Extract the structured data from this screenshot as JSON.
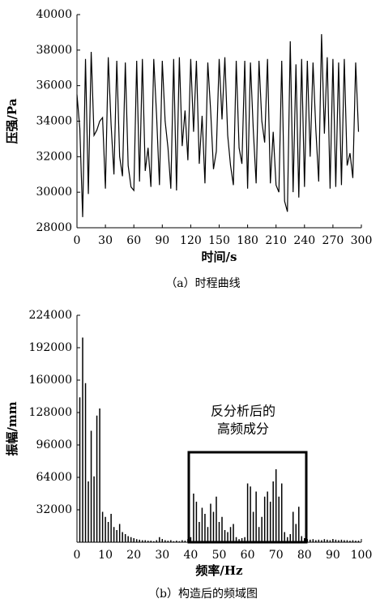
{
  "chart_data": [
    {
      "type": "line",
      "ylabel": "压强/Pa",
      "xlabel": "时间/s",
      "caption": "（a）时程曲线",
      "xlim": [
        0,
        300
      ],
      "xticks": [
        0,
        30,
        60,
        90,
        120,
        150,
        180,
        210,
        240,
        270,
        300
      ],
      "ylim": [
        28000,
        40000
      ],
      "yticks": [
        28000,
        30000,
        32000,
        34000,
        36000,
        38000,
        40000
      ],
      "color": "#000000",
      "x": [
        0,
        3,
        6,
        9,
        12,
        15,
        18,
        21,
        24,
        27,
        30,
        33,
        36,
        39,
        42,
        45,
        48,
        51,
        54,
        57,
        60,
        63,
        66,
        69,
        72,
        75,
        78,
        81,
        84,
        87,
        90,
        93,
        96,
        99,
        102,
        105,
        108,
        111,
        114,
        117,
        120,
        123,
        126,
        129,
        132,
        135,
        138,
        141,
        144,
        147,
        150,
        153,
        156,
        159,
        162,
        165,
        168,
        171,
        174,
        177,
        180,
        183,
        186,
        189,
        192,
        195,
        198,
        201,
        204,
        207,
        210,
        213,
        216,
        219,
        222,
        225,
        228,
        231,
        234,
        237,
        240,
        243,
        246,
        249,
        252,
        255,
        258,
        261,
        264,
        267,
        270,
        273,
        276,
        279,
        282,
        285,
        288,
        291,
        294,
        297
      ],
      "values": [
        35500,
        33600,
        28600,
        37500,
        29900,
        37900,
        33200,
        33500,
        34000,
        34200,
        30200,
        37600,
        33800,
        31000,
        37400,
        32000,
        30900,
        37300,
        31500,
        30300,
        30100,
        37400,
        30600,
        37500,
        31200,
        32500,
        30300,
        37500,
        34300,
        30400,
        37400,
        34000,
        32500,
        30200,
        37500,
        30100,
        37600,
        32600,
        34600,
        31800,
        37500,
        33400,
        37400,
        31600,
        34300,
        30500,
        37300,
        34600,
        31300,
        32300,
        37500,
        34100,
        37600,
        33200,
        31500,
        30400,
        37400,
        32500,
        31600,
        37400,
        30200,
        37300,
        33500,
        30500,
        37400,
        34000,
        32800,
        37500,
        30500,
        33400,
        30400,
        30000,
        37400,
        29500,
        28900,
        38500,
        30000,
        37200,
        29700,
        37500,
        30300,
        37400,
        32000,
        37300,
        33500,
        30600,
        38900,
        33300,
        37600,
        30200,
        37500,
        30300,
        37300,
        30400,
        37500,
        31500,
        32200,
        30800,
        37300,
        33400
      ]
    },
    {
      "type": "bar",
      "ylabel": "振幅/mm",
      "xlabel": "频率/Hz",
      "caption": "（b）构造后的频域图",
      "annotation": [
        "反分析后的",
        "高频成分"
      ],
      "xlim": [
        0,
        100
      ],
      "xticks": [
        0,
        10,
        20,
        30,
        40,
        50,
        60,
        70,
        80,
        90,
        100
      ],
      "ylim": [
        0,
        224000
      ],
      "yticks": [
        32000,
        64000,
        96000,
        128000,
        160000,
        192000,
        224000
      ],
      "color": "#000000",
      "x": [
        1,
        2,
        3,
        4,
        5,
        6,
        7,
        8,
        9,
        10,
        11,
        12,
        13,
        14,
        15,
        16,
        17,
        18,
        19,
        20,
        21,
        22,
        23,
        24,
        25,
        26,
        27,
        28,
        29,
        30,
        31,
        32,
        33,
        34,
        35,
        36,
        37,
        38,
        39,
        40,
        41,
        42,
        43,
        44,
        45,
        46,
        47,
        48,
        49,
        50,
        51,
        52,
        53,
        54,
        55,
        56,
        57,
        58,
        59,
        60,
        61,
        62,
        63,
        64,
        65,
        66,
        67,
        68,
        69,
        70,
        71,
        72,
        73,
        74,
        75,
        76,
        77,
        78,
        79,
        80,
        81,
        82,
        83,
        84,
        85,
        86,
        87,
        88,
        89,
        90,
        91,
        92,
        93,
        94,
        95,
        96,
        97,
        98,
        99
      ],
      "values": [
        143000,
        202000,
        157000,
        60000,
        110000,
        65000,
        125000,
        132000,
        30000,
        25000,
        20000,
        28000,
        15000,
        12000,
        18000,
        10000,
        8000,
        6000,
        5000,
        4000,
        3000,
        2500,
        2000,
        2000,
        1500,
        1500,
        1000,
        2000,
        5000,
        3000,
        2000,
        1500,
        2000,
        1000,
        1500,
        1000,
        2000,
        1500,
        3000,
        5000,
        48000,
        40000,
        20000,
        34000,
        28000,
        15000,
        38000,
        30000,
        45000,
        20000,
        25000,
        12000,
        10000,
        15000,
        18000,
        5000,
        3000,
        4000,
        5000,
        58000,
        55000,
        30000,
        50000,
        15000,
        25000,
        45000,
        50000,
        40000,
        60000,
        72000,
        45000,
        58000,
        10000,
        5000,
        8000,
        30000,
        18000,
        35000,
        6000,
        4000,
        3000,
        2500,
        3000,
        2000,
        2500,
        2000,
        3000,
        2500,
        2000,
        3000,
        2500,
        2000,
        2500,
        2000,
        2000,
        1500,
        2000,
        1500,
        1500
      ]
    }
  ]
}
